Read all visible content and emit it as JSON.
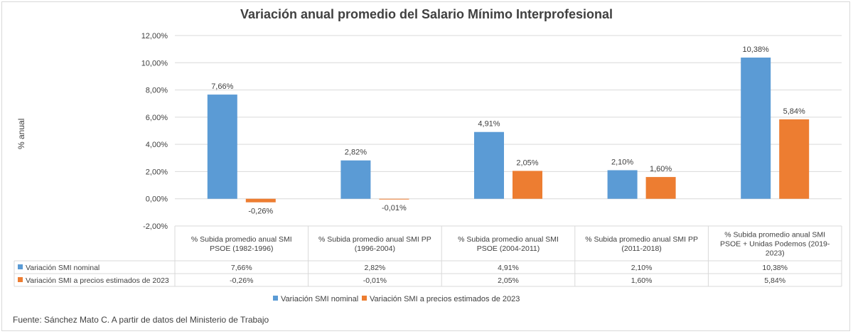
{
  "chart_data": {
    "type": "bar",
    "title": "Variación anual promedio del Salario Mínimo Interprofesional",
    "ylabel": "% anual",
    "xlabel": "",
    "ylim": [
      -2,
      12
    ],
    "ytick_values": [
      -2,
      0,
      2,
      4,
      6,
      8,
      10,
      12
    ],
    "ytick_labels": [
      "-2,00%",
      "0,00%",
      "2,00%",
      "4,00%",
      "6,00%",
      "8,00%",
      "10,00%",
      "12,00%"
    ],
    "grid": true,
    "legend_position": "bottom",
    "categories": [
      [
        "% Subida promedio anual SMI",
        "PSOE (1982-1996)"
      ],
      [
        "% Subida promedio anual SMI PP",
        "(1996-2004)"
      ],
      [
        "% Subida promedio anual SMI",
        "PSOE (2004-2011)"
      ],
      [
        "% Subida promedio anual SMI PP",
        "(2011-2018)"
      ],
      [
        "% Subida promedio anual SMI",
        "PSOE + Unidas Podemos (2019-",
        "2023)"
      ]
    ],
    "series": [
      {
        "name": "Variación SMI nominal",
        "color": "#5b9bd5",
        "values": [
          7.66,
          2.82,
          4.91,
          2.1,
          10.38
        ],
        "labels": [
          "7,66%",
          "2,82%",
          "4,91%",
          "2,10%",
          "10,38%"
        ]
      },
      {
        "name": "Variación SMI a precios estimados de 2023",
        "color": "#ed7d31",
        "values": [
          -0.26,
          -0.01,
          2.05,
          1.6,
          5.84
        ],
        "labels": [
          "-0,26%",
          "-0,01%",
          "2,05%",
          "1,60%",
          "5,84%"
        ]
      }
    ]
  },
  "footer": {
    "source": "Fuente: Sánchez Mato C.  A partir de datos del Ministerio de Trabajo"
  }
}
